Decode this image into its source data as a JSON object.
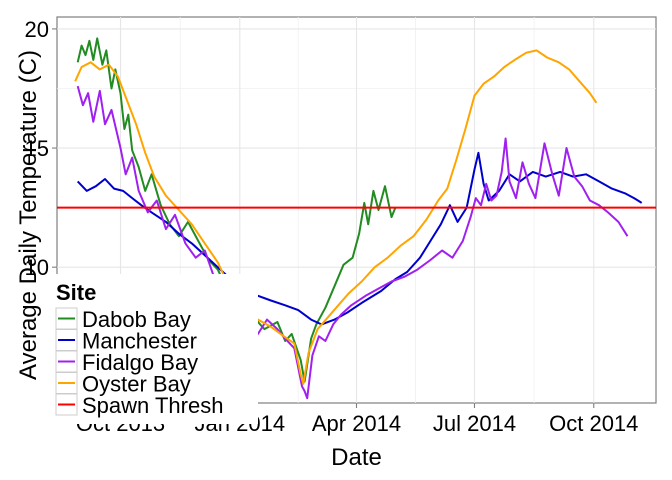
{
  "chart_data": {
    "type": "line",
    "title": "",
    "xlabel": "Date",
    "ylabel": "Average Daily Temperature (C)",
    "x_ticks": [
      "Oct 2013",
      "Jan 2014",
      "Apr 2014",
      "Jul 2014",
      "Oct 2014"
    ],
    "x_tick_dates": [
      "2013-10-01",
      "2014-01-01",
      "2014-04-01",
      "2014-07-01",
      "2014-10-01"
    ],
    "xlim": [
      "2013-08-13",
      "2014-11-18"
    ],
    "y_ticks": [
      "10",
      "15",
      "20"
    ],
    "y_tick_values": [
      10,
      15,
      20
    ],
    "ylim": [
      4.3,
      20.5
    ],
    "grid": true,
    "legend": {
      "title": "Site",
      "position": "bottom-left"
    },
    "series": [
      {
        "name": "Dabob Bay",
        "color": "#228B22",
        "points": [
          [
            "2013-08-29",
            18.6
          ],
          [
            "2013-09-01",
            19.3
          ],
          [
            "2013-09-04",
            18.9
          ],
          [
            "2013-09-07",
            19.5
          ],
          [
            "2013-09-10",
            18.7
          ],
          [
            "2013-09-13",
            19.6
          ],
          [
            "2013-09-17",
            18.5
          ],
          [
            "2013-09-20",
            19.1
          ],
          [
            "2013-09-24",
            17.5
          ],
          [
            "2013-09-27",
            18.3
          ],
          [
            "2013-10-01",
            17.3
          ],
          [
            "2013-10-04",
            15.8
          ],
          [
            "2013-10-07",
            16.4
          ],
          [
            "2013-10-10",
            14.9
          ],
          [
            "2013-10-15",
            14.2
          ],
          [
            "2013-10-20",
            13.2
          ],
          [
            "2013-10-25",
            13.9
          ],
          [
            "2013-11-01",
            12.6
          ],
          [
            "2013-11-08",
            11.8
          ],
          [
            "2013-11-15",
            11.3
          ],
          [
            "2013-11-22",
            11.9
          ],
          [
            "2013-12-01",
            11.0
          ],
          [
            "2013-12-08",
            10.3
          ],
          [
            "2013-12-15",
            9.9
          ],
          [
            "2013-12-22",
            9.1
          ],
          [
            "2014-01-01",
            8.5
          ],
          [
            "2014-01-10",
            8.0
          ],
          [
            "2014-01-20",
            7.4
          ],
          [
            "2014-01-30",
            7.7
          ],
          [
            "2014-02-05",
            6.9
          ],
          [
            "2014-02-10",
            7.2
          ],
          [
            "2014-02-17",
            6.1
          ],
          [
            "2014-02-20",
            5.2
          ],
          [
            "2014-02-25",
            7.0
          ],
          [
            "2014-03-01",
            7.6
          ],
          [
            "2014-03-08",
            8.3
          ],
          [
            "2014-03-15",
            9.2
          ],
          [
            "2014-03-22",
            10.1
          ],
          [
            "2014-03-29",
            10.4
          ],
          [
            "2014-04-03",
            11.4
          ],
          [
            "2014-04-07",
            12.7
          ],
          [
            "2014-04-10",
            11.8
          ],
          [
            "2014-04-14",
            13.2
          ],
          [
            "2014-04-18",
            12.4
          ],
          [
            "2014-04-23",
            13.4
          ],
          [
            "2014-04-28",
            12.1
          ],
          [
            "2014-05-01",
            12.5
          ]
        ]
      },
      {
        "name": "Manchester",
        "color": "#0000CD",
        "points": [
          [
            "2013-08-29",
            13.6
          ],
          [
            "2013-09-05",
            13.2
          ],
          [
            "2013-09-12",
            13.4
          ],
          [
            "2013-09-19",
            13.7
          ],
          [
            "2013-09-26",
            13.3
          ],
          [
            "2013-10-03",
            13.2
          ],
          [
            "2013-10-10",
            12.9
          ],
          [
            "2013-10-17",
            12.6
          ],
          [
            "2013-10-25",
            12.3
          ],
          [
            "2013-11-05",
            11.9
          ],
          [
            "2013-11-15",
            11.4
          ],
          [
            "2013-11-25",
            11.0
          ],
          [
            "2013-12-05",
            10.5
          ],
          [
            "2013-12-15",
            10.0
          ],
          [
            "2013-12-25",
            9.5
          ],
          [
            "2014-01-05",
            9.1
          ],
          [
            "2014-01-15",
            8.8
          ],
          [
            "2014-01-25",
            8.6
          ],
          [
            "2014-02-05",
            8.4
          ],
          [
            "2014-02-15",
            8.2
          ],
          [
            "2014-02-25",
            7.8
          ],
          [
            "2014-03-05",
            7.6
          ],
          [
            "2014-03-15",
            7.8
          ],
          [
            "2014-03-25",
            8.1
          ],
          [
            "2014-04-05",
            8.5
          ],
          [
            "2014-04-20",
            9.0
          ],
          [
            "2014-05-01",
            9.5
          ],
          [
            "2014-05-10",
            9.8
          ],
          [
            "2014-05-20",
            10.4
          ],
          [
            "2014-05-28",
            11.1
          ],
          [
            "2014-06-05",
            11.8
          ],
          [
            "2014-06-12",
            12.6
          ],
          [
            "2014-06-18",
            11.9
          ],
          [
            "2014-06-25",
            12.5
          ],
          [
            "2014-07-01",
            14.1
          ],
          [
            "2014-07-04",
            14.8
          ],
          [
            "2014-07-08",
            13.5
          ],
          [
            "2014-07-12",
            12.8
          ],
          [
            "2014-07-20",
            13.2
          ],
          [
            "2014-07-28",
            13.9
          ],
          [
            "2014-08-05",
            13.6
          ],
          [
            "2014-08-15",
            14.0
          ],
          [
            "2014-08-25",
            13.8
          ],
          [
            "2014-09-05",
            14.0
          ],
          [
            "2014-09-15",
            13.8
          ],
          [
            "2014-09-25",
            13.9
          ],
          [
            "2014-10-05",
            13.6
          ],
          [
            "2014-10-15",
            13.3
          ],
          [
            "2014-10-25",
            13.1
          ],
          [
            "2014-11-01",
            12.9
          ],
          [
            "2014-11-07",
            12.7
          ]
        ]
      },
      {
        "name": "Fidalgo Bay",
        "color": "#A020F0",
        "points": [
          [
            "2013-08-29",
            17.6
          ],
          [
            "2013-09-02",
            16.8
          ],
          [
            "2013-09-06",
            17.3
          ],
          [
            "2013-09-10",
            16.1
          ],
          [
            "2013-09-15",
            17.4
          ],
          [
            "2013-09-19",
            16.0
          ],
          [
            "2013-09-24",
            16.6
          ],
          [
            "2013-10-01",
            15.0
          ],
          [
            "2013-10-05",
            13.9
          ],
          [
            "2013-10-10",
            14.6
          ],
          [
            "2013-10-15",
            13.2
          ],
          [
            "2013-10-22",
            12.3
          ],
          [
            "2013-10-29",
            12.8
          ],
          [
            "2013-11-05",
            11.6
          ],
          [
            "2013-11-12",
            12.2
          ],
          [
            "2013-11-20",
            11.0
          ],
          [
            "2013-11-28",
            10.4
          ],
          [
            "2013-12-05",
            10.7
          ],
          [
            "2013-12-12",
            9.6
          ],
          [
            "2013-12-18",
            8.9
          ],
          [
            "2013-12-25",
            9.3
          ],
          [
            "2014-01-01",
            8.6
          ],
          [
            "2014-01-05",
            6.9
          ],
          [
            "2014-01-10",
            7.5
          ],
          [
            "2014-01-15",
            7.2
          ],
          [
            "2014-01-22",
            7.8
          ],
          [
            "2014-01-30",
            7.4
          ],
          [
            "2014-02-05",
            7.0
          ],
          [
            "2014-02-12",
            6.6
          ],
          [
            "2014-02-18",
            5.0
          ],
          [
            "2014-02-20",
            4.8
          ],
          [
            "2014-02-22",
            4.5
          ],
          [
            "2014-02-26",
            6.3
          ],
          [
            "2014-03-03",
            7.1
          ],
          [
            "2014-03-08",
            6.9
          ],
          [
            "2014-03-14",
            7.6
          ],
          [
            "2014-03-20",
            8.0
          ],
          [
            "2014-03-28",
            8.4
          ],
          [
            "2014-04-08",
            8.8
          ],
          [
            "2014-04-18",
            9.1
          ],
          [
            "2014-04-28",
            9.4
          ],
          [
            "2014-05-08",
            9.6
          ],
          [
            "2014-05-18",
            9.9
          ],
          [
            "2014-05-28",
            10.3
          ],
          [
            "2014-06-06",
            10.7
          ],
          [
            "2014-06-14",
            10.4
          ],
          [
            "2014-06-22",
            11.1
          ],
          [
            "2014-06-28",
            12.1
          ],
          [
            "2014-07-02",
            12.9
          ],
          [
            "2014-07-06",
            12.6
          ],
          [
            "2014-07-10",
            13.5
          ],
          [
            "2014-07-14",
            12.8
          ],
          [
            "2014-07-18",
            13.0
          ],
          [
            "2014-07-22",
            14.0
          ],
          [
            "2014-07-25",
            15.4
          ],
          [
            "2014-07-28",
            13.6
          ],
          [
            "2014-08-02",
            12.9
          ],
          [
            "2014-08-07",
            14.4
          ],
          [
            "2014-08-12",
            13.5
          ],
          [
            "2014-08-17",
            12.9
          ],
          [
            "2014-08-24",
            15.2
          ],
          [
            "2014-08-30",
            13.9
          ],
          [
            "2014-09-04",
            13.0
          ],
          [
            "2014-09-10",
            15.0
          ],
          [
            "2014-09-16",
            13.8
          ],
          [
            "2014-09-22",
            13.4
          ],
          [
            "2014-09-28",
            12.8
          ],
          [
            "2014-10-05",
            12.6
          ],
          [
            "2014-10-12",
            12.3
          ],
          [
            "2014-10-20",
            11.9
          ],
          [
            "2014-10-27",
            11.3
          ]
        ]
      },
      {
        "name": "Oyster Bay",
        "color": "#FFA500",
        "points": [
          [
            "2013-08-27",
            17.8
          ],
          [
            "2013-09-01",
            18.4
          ],
          [
            "2013-09-08",
            18.6
          ],
          [
            "2013-09-15",
            18.3
          ],
          [
            "2013-09-22",
            18.5
          ],
          [
            "2013-09-29",
            18.0
          ],
          [
            "2013-10-06",
            17.0
          ],
          [
            "2013-10-13",
            16.0
          ],
          [
            "2013-10-20",
            14.8
          ],
          [
            "2013-10-27",
            13.8
          ],
          [
            "2013-11-05",
            13.0
          ],
          [
            "2013-11-15",
            12.4
          ],
          [
            "2013-11-25",
            11.8
          ],
          [
            "2013-12-05",
            11.0
          ],
          [
            "2013-12-15",
            10.2
          ],
          [
            "2013-12-22",
            9.4
          ],
          [
            "2013-12-28",
            8.9
          ],
          [
            "2014-01-05",
            8.3
          ],
          [
            "2014-01-15",
            7.8
          ],
          [
            "2014-01-25",
            7.5
          ],
          [
            "2014-02-04",
            7.1
          ],
          [
            "2014-02-12",
            6.8
          ],
          [
            "2014-02-17",
            5.5
          ],
          [
            "2014-02-19",
            5.1
          ],
          [
            "2014-02-23",
            6.4
          ],
          [
            "2014-03-02",
            7.4
          ],
          [
            "2014-03-10",
            7.9
          ],
          [
            "2014-03-18",
            8.4
          ],
          [
            "2014-03-26",
            8.9
          ],
          [
            "2014-04-05",
            9.4
          ],
          [
            "2014-04-15",
            10.0
          ],
          [
            "2014-04-25",
            10.4
          ],
          [
            "2014-05-05",
            10.9
          ],
          [
            "2014-05-15",
            11.3
          ],
          [
            "2014-05-25",
            12.0
          ],
          [
            "2014-06-03",
            12.8
          ],
          [
            "2014-06-10",
            13.3
          ],
          [
            "2014-06-17",
            14.5
          ],
          [
            "2014-06-24",
            15.8
          ],
          [
            "2014-07-01",
            17.2
          ],
          [
            "2014-07-08",
            17.7
          ],
          [
            "2014-07-16",
            18.0
          ],
          [
            "2014-07-24",
            18.4
          ],
          [
            "2014-08-01",
            18.7
          ],
          [
            "2014-08-10",
            19.0
          ],
          [
            "2014-08-18",
            19.1
          ],
          [
            "2014-08-26",
            18.8
          ],
          [
            "2014-09-04",
            18.6
          ],
          [
            "2014-09-12",
            18.3
          ],
          [
            "2014-09-20",
            17.8
          ],
          [
            "2014-09-28",
            17.3
          ],
          [
            "2014-10-03",
            16.9
          ]
        ]
      },
      {
        "name": "Spawn Thresh",
        "color": "#FF0000",
        "constant": 12.5
      }
    ]
  }
}
